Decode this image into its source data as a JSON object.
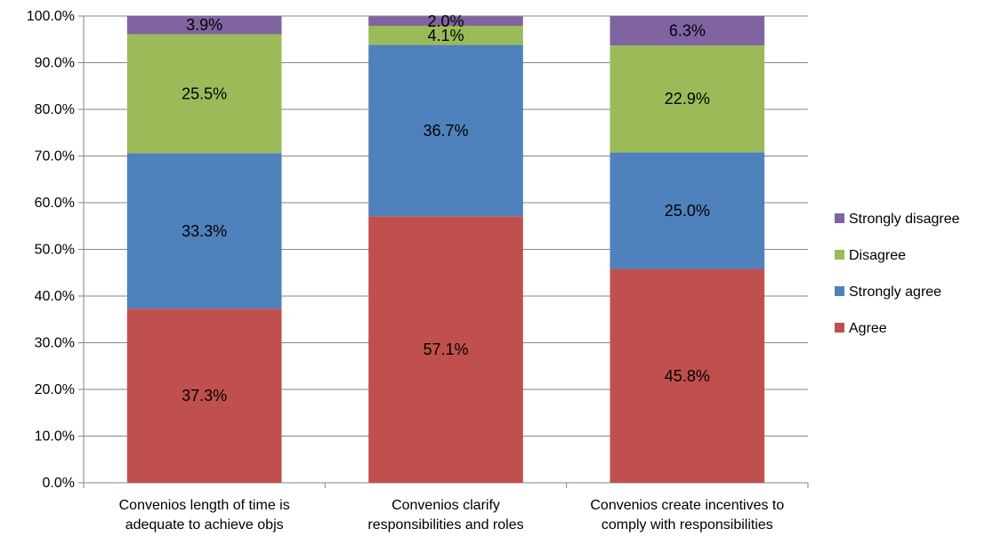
{
  "chart_data": {
    "type": "bar",
    "stacked": true,
    "title": "",
    "xlabel": "",
    "ylabel": "",
    "ylim": [
      0,
      100
    ],
    "yticks": [
      "0.0%",
      "10.0%",
      "20.0%",
      "30.0%",
      "40.0%",
      "50.0%",
      "60.0%",
      "70.0%",
      "80.0%",
      "90.0%",
      "100.0%"
    ],
    "categories": [
      [
        "Convenios length of time is",
        "adequate to achieve objs"
      ],
      [
        "Convenios clarify",
        "responsibilities and roles"
      ],
      [
        "Convenios create incentives to",
        "comply with responsibilities"
      ]
    ],
    "series": [
      {
        "name": "Agree",
        "color": "#C0504D",
        "values": [
          37.3,
          57.1,
          45.8
        ],
        "labels": [
          "37.3%",
          "57.1%",
          "45.8%"
        ]
      },
      {
        "name": "Strongly agree",
        "color": "#4F81BD",
        "values": [
          33.3,
          36.7,
          25.0
        ],
        "labels": [
          "33.3%",
          "36.7%",
          "25.0%"
        ]
      },
      {
        "name": "Disagree",
        "color": "#9BBB59",
        "values": [
          25.5,
          4.1,
          22.9
        ],
        "labels": [
          "25.5%",
          "4.1%",
          "22.9%"
        ]
      },
      {
        "name": "Strongly disagree",
        "color": "#8064A2",
        "values": [
          3.9,
          2.0,
          6.3
        ],
        "labels": [
          "3.9%",
          "2.0%",
          "6.3%"
        ]
      }
    ],
    "legend_order": [
      "Strongly disagree",
      "Disagree",
      "Strongly agree",
      "Agree"
    ],
    "legend_position": "right",
    "grid": true
  }
}
